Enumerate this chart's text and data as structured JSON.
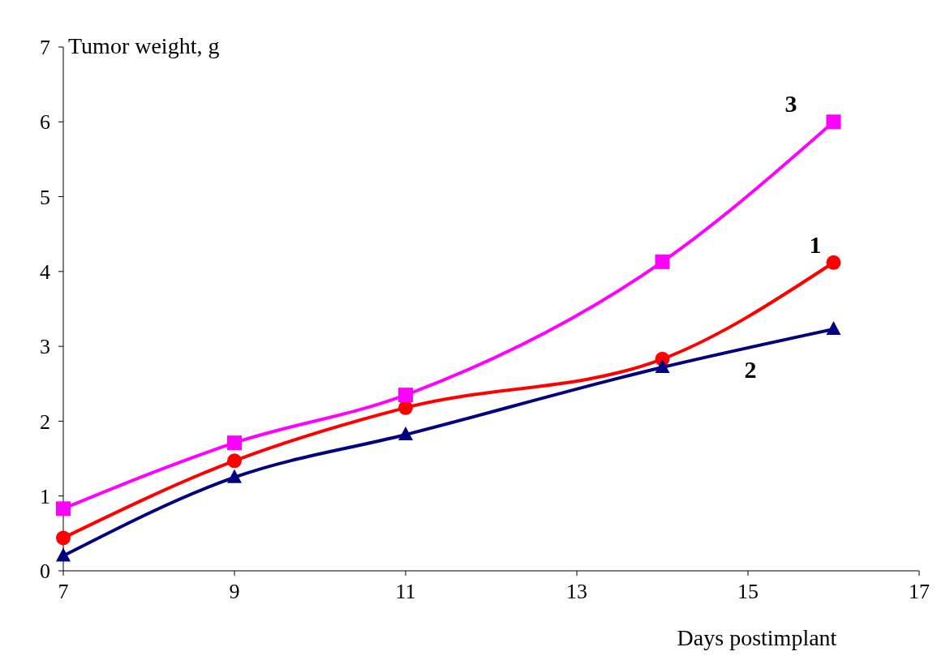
{
  "chart_data": {
    "type": "line",
    "xlabel": "Days postimplant",
    "ylabel": "Tumor weight, g",
    "x": [
      7,
      9,
      11,
      14,
      16
    ],
    "series": [
      {
        "name": "1",
        "color": "#ff0000",
        "marker": "circle",
        "values": [
          0.44,
          1.47,
          2.18,
          2.83,
          4.12
        ]
      },
      {
        "name": "2",
        "color": "#000080",
        "marker": "triangle",
        "values": [
          0.2,
          1.25,
          1.82,
          2.72,
          3.23
        ]
      },
      {
        "name": "3",
        "color": "#ff00ff",
        "marker": "square",
        "values": [
          0.83,
          1.71,
          2.35,
          4.13,
          6.0
        ]
      }
    ],
    "xlim": [
      7,
      17
    ],
    "xticks": [
      7,
      9,
      11,
      13,
      15,
      17
    ],
    "ylim": [
      0,
      7
    ],
    "yticks": [
      0,
      1,
      2,
      3,
      4,
      5,
      6,
      7
    ],
    "grid": false,
    "line_style": "solid"
  }
}
